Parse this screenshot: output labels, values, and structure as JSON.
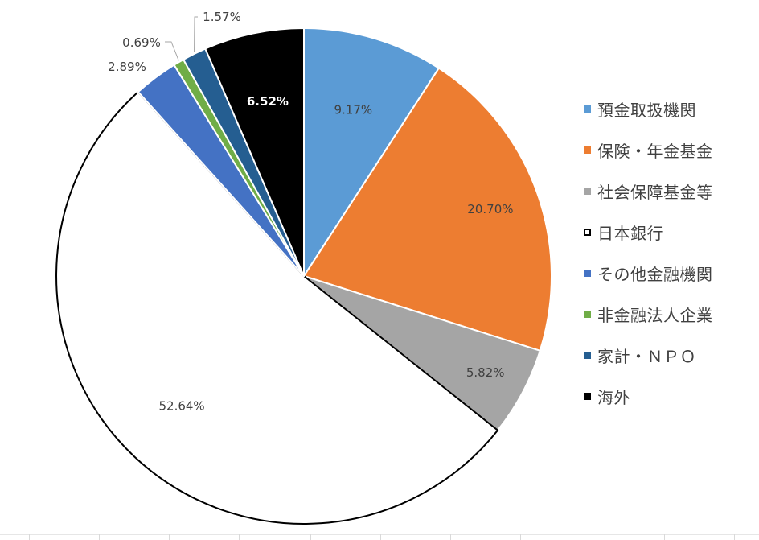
{
  "chart_data": {
    "type": "pie",
    "categories": [
      "預金取扱機関",
      "保険・年金基金",
      "社会保障基金等",
      "日本銀行",
      "その他金融機関",
      "非金融法人企業",
      "家計・ＮＰＯ",
      "海外"
    ],
    "values": [
      9.17,
      20.7,
      5.82,
      52.64,
      2.89,
      0.69,
      1.57,
      6.52
    ],
    "data_labels": [
      "9.17%",
      "20.70%",
      "5.82%",
      "52.64%",
      "2.89%",
      "0.69%",
      "1.57%",
      "6.52%"
    ],
    "colors": [
      "#5b9bd5",
      "#ed7d31",
      "#a5a5a5",
      "#ffffff",
      "#4472c4",
      "#70ad47",
      "#255e91",
      "#000000"
    ],
    "outline_colors": [
      "#ffffff",
      "#ffffff",
      "#ffffff",
      "#000000",
      "#ffffff",
      "#ffffff",
      "#ffffff",
      "#ffffff"
    ],
    "label_colors": [
      "#404040",
      "#404040",
      "#404040",
      "#404040",
      "#404040",
      "#404040",
      "#404040",
      "#ffffff"
    ],
    "start_angle": "12 o'clock",
    "direction": "clockwise",
    "legend_position": "right"
  }
}
